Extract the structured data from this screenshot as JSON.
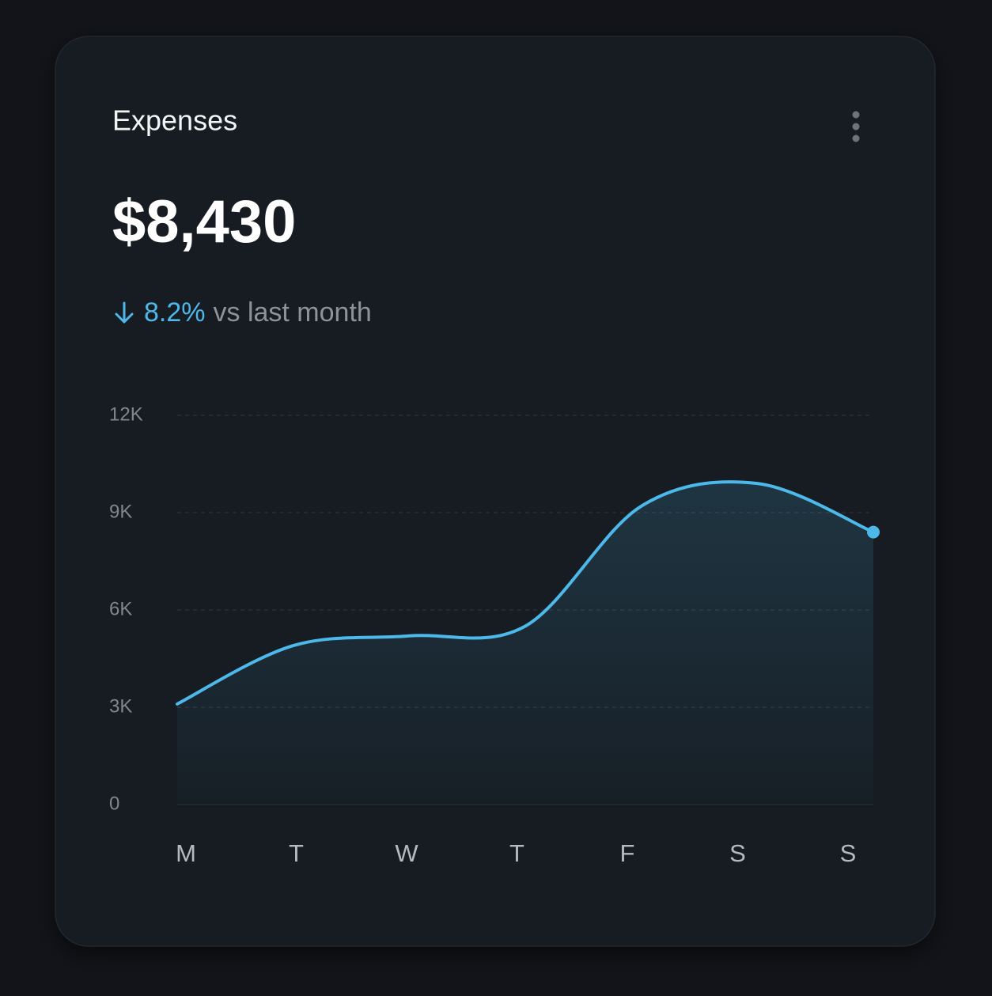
{
  "chart_data": {
    "type": "area",
    "title": "Expenses",
    "total": "$8,430",
    "change": "8.2%",
    "change_text": "vs last month",
    "categories": [
      "M",
      "T",
      "W",
      "T",
      "F",
      "S",
      "S"
    ],
    "values": [
      3100,
      4900,
      5200,
      5500,
      9200,
      9900,
      8400
    ],
    "color": "#4db8ea",
    "ylim": [
      0,
      12000
    ],
    "yticks": [
      0,
      {
        "value": 3000,
        "label": "3K"
      },
      {
        "value": 6000,
        "label": "6K"
      },
      {
        "value": 9000,
        "label": "9K"
      },
      {
        "value": 12000,
        "label": "12K"
      }
    ],
    "grid": true
  }
}
